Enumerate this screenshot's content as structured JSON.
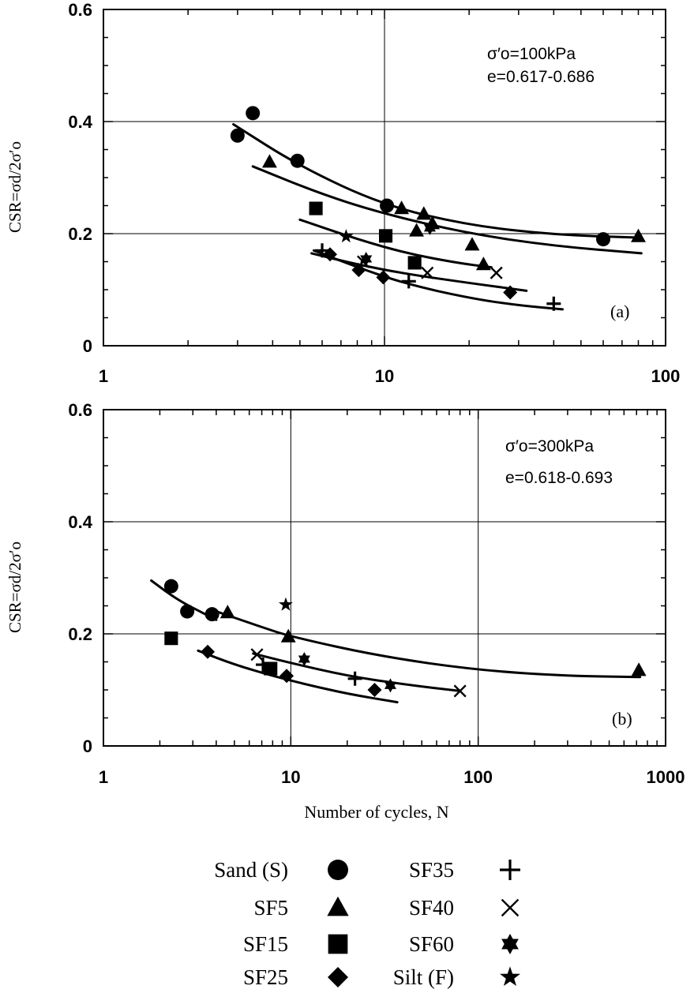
{
  "chart_data": [
    {
      "type": "scatter",
      "panel_label": "(a)",
      "annotations": [
        "σ′o=100kPa",
        "e=0.617-0.686"
      ],
      "xscale": "log",
      "xlim": [
        1,
        100
      ],
      "ylim": [
        0,
        0.6
      ],
      "x_ticks": [
        "1",
        "10",
        "100"
      ],
      "y_ticks": [
        "0",
        "0.2",
        "0.4",
        "0.6"
      ],
      "ylabel": "CSR=σd/2σ′o",
      "grid": true,
      "series": [
        {
          "name": "Sand (S)",
          "marker": "circle",
          "points": [
            [
              3.0,
              0.375
            ],
            [
              3.4,
              0.415
            ],
            [
              4.9,
              0.33
            ],
            [
              10.2,
              0.25
            ],
            [
              60,
              0.19
            ]
          ]
        },
        {
          "name": "SF5",
          "marker": "triangle",
          "points": [
            [
              3.9,
              0.328
            ],
            [
              11.5,
              0.245
            ],
            [
              13,
              0.205
            ],
            [
              13.8,
              0.235
            ],
            [
              14.8,
              0.218
            ],
            [
              20.5,
              0.18
            ],
            [
              22.5,
              0.145
            ],
            [
              80,
              0.195
            ]
          ]
        },
        {
          "name": "SF15",
          "marker": "square",
          "points": [
            [
              5.7,
              0.245
            ],
            [
              10.1,
              0.196
            ],
            [
              12.8,
              0.148
            ]
          ]
        },
        {
          "name": "SF25",
          "marker": "diamond",
          "points": [
            [
              6.4,
              0.163
            ],
            [
              8.1,
              0.135
            ],
            [
              9.9,
              0.122
            ],
            [
              28,
              0.095
            ]
          ]
        },
        {
          "name": "SF35",
          "marker": "plus",
          "points": [
            [
              6.0,
              0.17
            ],
            [
              12.2,
              0.115
            ],
            [
              40,
              0.075
            ]
          ]
        },
        {
          "name": "SF40",
          "marker": "cross",
          "points": [
            [
              8.4,
              0.15
            ],
            [
              14.2,
              0.13
            ],
            [
              25,
              0.13
            ]
          ]
        },
        {
          "name": "SF60",
          "marker": "hexstar",
          "points": [
            [
              8.6,
              0.155
            ],
            [
              14.5,
              0.21
            ]
          ]
        },
        {
          "name": "Silt (F)",
          "marker": "star",
          "points": [
            [
              7.3,
              0.195
            ]
          ]
        }
      ],
      "trend_lines": [
        [
          [
            2.9,
            0.395
          ],
          [
            5,
            0.32
          ],
          [
            10,
            0.25
          ],
          [
            20,
            0.215
          ],
          [
            40,
            0.198
          ],
          [
            80,
            0.193
          ]
        ],
        [
          [
            3.4,
            0.32
          ],
          [
            6,
            0.27
          ],
          [
            10,
            0.235
          ],
          [
            20,
            0.2
          ],
          [
            40,
            0.178
          ],
          [
            82,
            0.165
          ]
        ],
        [
          [
            5,
            0.225
          ],
          [
            8,
            0.19
          ],
          [
            12,
            0.165
          ],
          [
            18,
            0.148
          ],
          [
            24,
            0.14
          ]
        ],
        [
          [
            5.5,
            0.165
          ],
          [
            8,
            0.145
          ],
          [
            12,
            0.128
          ],
          [
            20,
            0.112
          ],
          [
            32,
            0.098
          ]
        ],
        [
          [
            5.6,
            0.17
          ],
          [
            8,
            0.14
          ],
          [
            12,
            0.11
          ],
          [
            20,
            0.085
          ],
          [
            30,
            0.072
          ],
          [
            43,
            0.065
          ]
        ]
      ]
    },
    {
      "type": "scatter",
      "panel_label": "(b)",
      "annotations": [
        "σ′o=300kPa",
        "e=0.618-0.693"
      ],
      "xscale": "log",
      "xlim": [
        1,
        1000
      ],
      "ylim": [
        0,
        0.6
      ],
      "x_ticks": [
        "1",
        "10",
        "100",
        "1000"
      ],
      "y_ticks": [
        "0",
        "0.2",
        "0.4",
        "0.6"
      ],
      "xlabel": "Number of cycles, N",
      "ylabel": "CSR=σd/2σ′o",
      "grid": true,
      "series": [
        {
          "name": "Sand (S)",
          "marker": "circle",
          "points": [
            [
              2.3,
              0.285
            ],
            [
              2.8,
              0.24
            ],
            [
              3.8,
              0.235
            ]
          ]
        },
        {
          "name": "SF5",
          "marker": "triangle",
          "points": [
            [
              4.6,
              0.238
            ],
            [
              9.7,
              0.195
            ],
            [
              720,
              0.135
            ]
          ]
        },
        {
          "name": "SF15",
          "marker": "square",
          "points": [
            [
              2.3,
              0.192
            ],
            [
              7.8,
              0.138
            ]
          ]
        },
        {
          "name": "SF25",
          "marker": "diamond",
          "points": [
            [
              3.6,
              0.168
            ],
            [
              9.5,
              0.125
            ],
            [
              28,
              0.1
            ]
          ]
        },
        {
          "name": "SF35",
          "marker": "plus",
          "points": [
            [
              7.1,
              0.145
            ],
            [
              22,
              0.12
            ]
          ]
        },
        {
          "name": "SF40",
          "marker": "cross",
          "points": [
            [
              6.6,
              0.163
            ],
            [
              80,
              0.098
            ]
          ]
        },
        {
          "name": "SF60",
          "marker": "hexstar",
          "points": [
            [
              11.8,
              0.155
            ],
            [
              34,
              0.108
            ]
          ]
        },
        {
          "name": "Silt (F)",
          "marker": "star",
          "points": [
            [
              9.4,
              0.252
            ]
          ]
        }
      ],
      "trend_lines": [
        [
          [
            1.8,
            0.295
          ],
          [
            2.5,
            0.26
          ],
          [
            3.5,
            0.235
          ],
          [
            4,
            0.225
          ]
        ],
        [
          [
            4,
            0.24
          ],
          [
            7,
            0.212
          ],
          [
            10,
            0.195
          ],
          [
            30,
            0.16
          ],
          [
            100,
            0.135
          ],
          [
            300,
            0.125
          ],
          [
            730,
            0.123
          ]
        ],
        [
          [
            6.3,
            0.165
          ],
          [
            10,
            0.148
          ],
          [
            20,
            0.125
          ],
          [
            40,
            0.11
          ],
          [
            80,
            0.098
          ]
        ],
        [
          [
            3.2,
            0.17
          ],
          [
            5,
            0.145
          ],
          [
            8,
            0.125
          ],
          [
            12,
            0.11
          ],
          [
            20,
            0.093
          ],
          [
            37,
            0.078
          ]
        ]
      ]
    }
  ],
  "legend": [
    {
      "name": "Sand (S)",
      "marker": "circle"
    },
    {
      "name": "SF5",
      "marker": "triangle"
    },
    {
      "name": "SF15",
      "marker": "square"
    },
    {
      "name": "SF25",
      "marker": "diamond"
    },
    {
      "name": "SF35",
      "marker": "plus"
    },
    {
      "name": "SF40",
      "marker": "cross"
    },
    {
      "name": "SF60",
      "marker": "hexstar"
    },
    {
      "name": "Silt (F)",
      "marker": "star"
    }
  ]
}
